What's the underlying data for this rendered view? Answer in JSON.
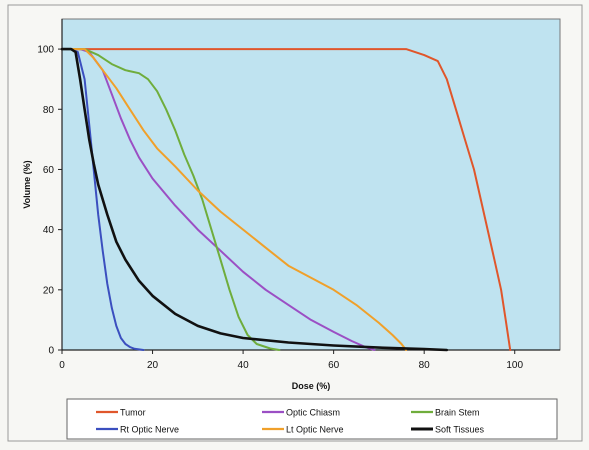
{
  "chart_data": {
    "type": "line",
    "xlabel": "Dose (%)",
    "ylabel": "Volume (%)",
    "xlim": [
      0,
      110
    ],
    "ylim": [
      0,
      110
    ],
    "xticks": [
      0,
      20,
      40,
      60,
      80,
      100
    ],
    "yticks": [
      0,
      20,
      40,
      60,
      80,
      100
    ],
    "grid": false,
    "plot_background": "#bfe3f0",
    "legend_placement": "bottom",
    "series": [
      {
        "name": "Tumor",
        "color": "#e0562b",
        "points": [
          [
            2,
            100
          ],
          [
            76,
            100
          ],
          [
            80,
            98
          ],
          [
            83,
            96
          ],
          [
            85,
            90
          ],
          [
            87,
            80
          ],
          [
            89,
            70
          ],
          [
            91,
            60
          ],
          [
            92.5,
            50
          ],
          [
            94,
            40
          ],
          [
            95.5,
            30
          ],
          [
            97,
            20
          ],
          [
            98,
            10
          ],
          [
            98.6,
            4
          ],
          [
            99,
            0
          ]
        ]
      },
      {
        "name": "Optic Chiasm",
        "color": "#9b4fc4",
        "points": [
          [
            2,
            100
          ],
          [
            4,
            100
          ],
          [
            6,
            99
          ],
          [
            9,
            93
          ],
          [
            11,
            85
          ],
          [
            13,
            77
          ],
          [
            15,
            70
          ],
          [
            17,
            64
          ],
          [
            20,
            57
          ],
          [
            25,
            48
          ],
          [
            30,
            40
          ],
          [
            35,
            33
          ],
          [
            40,
            26
          ],
          [
            45,
            20
          ],
          [
            50,
            15
          ],
          [
            55,
            10
          ],
          [
            60,
            6
          ],
          [
            64,
            3
          ],
          [
            67,
            1
          ],
          [
            69,
            0
          ]
        ]
      },
      {
        "name": "Brain Stem",
        "color": "#6fad3c",
        "points": [
          [
            2,
            100
          ],
          [
            5,
            100
          ],
          [
            8,
            98
          ],
          [
            11,
            95
          ],
          [
            14,
            93
          ],
          [
            17,
            92
          ],
          [
            19,
            90
          ],
          [
            21,
            86
          ],
          [
            23,
            80
          ],
          [
            25,
            73
          ],
          [
            27,
            65
          ],
          [
            29,
            58
          ],
          [
            31,
            50
          ],
          [
            33,
            40
          ],
          [
            35,
            30
          ],
          [
            37,
            20
          ],
          [
            39,
            11
          ],
          [
            41,
            5
          ],
          [
            43,
            2
          ],
          [
            46,
            0.5
          ],
          [
            48,
            0
          ]
        ]
      },
      {
        "name": "Rt Optic Nerve",
        "color": "#3b4fbf",
        "points": [
          [
            2,
            100
          ],
          [
            3.5,
            99
          ],
          [
            5,
            90
          ],
          [
            6,
            75
          ],
          [
            7,
            60
          ],
          [
            8,
            45
          ],
          [
            9,
            33
          ],
          [
            10,
            22
          ],
          [
            11,
            14
          ],
          [
            12,
            8
          ],
          [
            13,
            4
          ],
          [
            14,
            2
          ],
          [
            15,
            1
          ],
          [
            16,
            0.4
          ],
          [
            18,
            0
          ]
        ]
      },
      {
        "name": "Lt Optic Nerve",
        "color": "#f0a02a",
        "points": [
          [
            2,
            100
          ],
          [
            5,
            100
          ],
          [
            7,
            97
          ],
          [
            9,
            93
          ],
          [
            12,
            87
          ],
          [
            15,
            80
          ],
          [
            18,
            73
          ],
          [
            21,
            67
          ],
          [
            25,
            61
          ],
          [
            30,
            53
          ],
          [
            35,
            46
          ],
          [
            40,
            40
          ],
          [
            45,
            34
          ],
          [
            50,
            28
          ],
          [
            55,
            24
          ],
          [
            60,
            20
          ],
          [
            65,
            15
          ],
          [
            70,
            9
          ],
          [
            73,
            5
          ],
          [
            75,
            2
          ],
          [
            76,
            0
          ]
        ]
      },
      {
        "name": "Soft Tissues",
        "color": "#111111",
        "points": [
          [
            0,
            100
          ],
          [
            2,
            100
          ],
          [
            3,
            99
          ],
          [
            4,
            90
          ],
          [
            5,
            80
          ],
          [
            6,
            70
          ],
          [
            7,
            62
          ],
          [
            8,
            55
          ],
          [
            10,
            45
          ],
          [
            12,
            36
          ],
          [
            14,
            30
          ],
          [
            17,
            23
          ],
          [
            20,
            18
          ],
          [
            25,
            12
          ],
          [
            30,
            8
          ],
          [
            35,
            5.5
          ],
          [
            40,
            4
          ],
          [
            50,
            2.5
          ],
          [
            60,
            1.5
          ],
          [
            70,
            0.8
          ],
          [
            80,
            0.3
          ],
          [
            85,
            0
          ]
        ]
      }
    ]
  }
}
